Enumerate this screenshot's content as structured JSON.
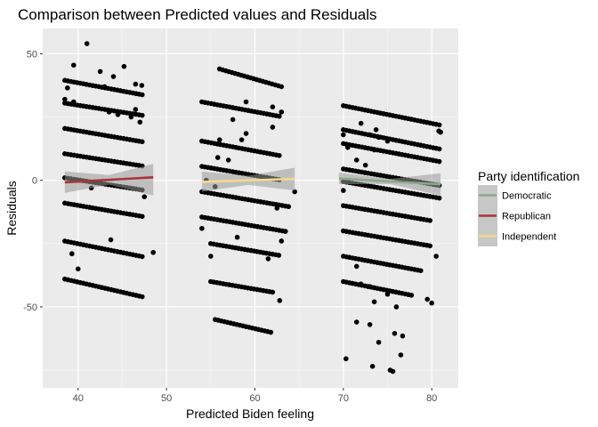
{
  "chart_data": {
    "type": "scatter",
    "title": "Comparison between Predicted values and Residuals",
    "xlabel": "Predicted Biden feeling",
    "ylabel": "Residuals",
    "xlim": [
      36,
      83
    ],
    "ylim": [
      -82,
      60
    ],
    "x_ticks": [
      40,
      50,
      60,
      70,
      80
    ],
    "y_ticks": [
      -50,
      0,
      50
    ],
    "grid": true,
    "legend": {
      "title": "Party identification",
      "position": "right",
      "entries": [
        {
          "name": "Democratic",
          "color": "#8aa88a"
        },
        {
          "name": "Republican",
          "color": "#a8323a"
        },
        {
          "name": "Independent",
          "color": "#f5d88a"
        }
      ]
    },
    "point_color": "#000000",
    "band_color": "#999999",
    "bands": [
      {
        "x0": 38.5,
        "x1": 47.5,
        "y0": 39.5,
        "slope": -0.65
      },
      {
        "x0": 38.5,
        "x1": 47.5,
        "y0": 30.5,
        "slope": -0.55
      },
      {
        "x0": 38.5,
        "x1": 47.5,
        "y0": 20.5,
        "slope": -0.6
      },
      {
        "x0": 38.5,
        "x1": 47.5,
        "y0": 10.5,
        "slope": -0.55
      },
      {
        "x0": 38.5,
        "x1": 47.5,
        "y0": 1,
        "slope": -0.55
      },
      {
        "x0": 38.5,
        "x1": 47.5,
        "y0": -9,
        "slope": -0.6
      },
      {
        "x0": 38.5,
        "x1": 47.5,
        "y0": -24,
        "slope": -0.7
      },
      {
        "x0": 38.5,
        "x1": 47.5,
        "y0": -39,
        "slope": -0.8
      },
      {
        "x0": 54,
        "x1": 63,
        "y0": 31,
        "slope": -0.65
      },
      {
        "x0": 54,
        "x1": 63,
        "y0": 15.5,
        "slope": -0.65
      },
      {
        "x0": 54,
        "x1": 63,
        "y0": 5.5,
        "slope": -0.6
      },
      {
        "x0": 54,
        "x1": 64,
        "y0": -4.5,
        "slope": -0.6
      },
      {
        "x0": 54,
        "x1": 63.5,
        "y0": -14.5,
        "slope": -0.6
      },
      {
        "x0": 55,
        "x1": 63,
        "y0": -25,
        "slope": -0.6
      },
      {
        "x0": 55,
        "x1": 62,
        "y0": -40,
        "slope": -0.6
      },
      {
        "x0": 55.5,
        "x1": 62,
        "y0": -55,
        "slope": -0.8
      },
      {
        "x0": 56,
        "x1": 63,
        "y0": 44,
        "slope": -1.0
      },
      {
        "x0": 70,
        "x1": 81,
        "y0": 29.5,
        "slope": -0.7
      },
      {
        "x0": 70,
        "x1": 81,
        "y0": 20,
        "slope": -0.7
      },
      {
        "x0": 70,
        "x1": 81,
        "y0": 14.5,
        "slope": -0.65
      },
      {
        "x0": 70,
        "x1": 81,
        "y0": 4.5,
        "slope": -0.6
      },
      {
        "x0": 70,
        "x1": 81,
        "y0": -0.5,
        "slope": -0.6
      },
      {
        "x0": 70,
        "x1": 80,
        "y0": -10,
        "slope": -0.6
      },
      {
        "x0": 70,
        "x1": 80,
        "y0": -20,
        "slope": -0.6
      },
      {
        "x0": 70,
        "x1": 79,
        "y0": -30,
        "slope": -0.65
      },
      {
        "x0": 70,
        "x1": 78,
        "y0": -40,
        "slope": -0.7
      }
    ],
    "extra_points": [
      {
        "x": 41,
        "y": 54
      },
      {
        "x": 39.5,
        "y": 45.5
      },
      {
        "x": 38.8,
        "y": 36.5
      },
      {
        "x": 38.5,
        "y": 32
      },
      {
        "x": 42.5,
        "y": 43
      },
      {
        "x": 44,
        "y": 41
      },
      {
        "x": 45.2,
        "y": 45
      },
      {
        "x": 43,
        "y": 37
      },
      {
        "x": 46.5,
        "y": 38
      },
      {
        "x": 47.2,
        "y": 37.5
      },
      {
        "x": 43.5,
        "y": 27
      },
      {
        "x": 44.5,
        "y": 26
      },
      {
        "x": 46.5,
        "y": 28
      },
      {
        "x": 47,
        "y": 23
      },
      {
        "x": 46,
        "y": 25
      },
      {
        "x": 39.5,
        "y": 31
      },
      {
        "x": 39.3,
        "y": -29
      },
      {
        "x": 40,
        "y": -35
      },
      {
        "x": 43.7,
        "y": -23.5
      },
      {
        "x": 48.5,
        "y": -28.5
      },
      {
        "x": 47.5,
        "y": -6.5
      },
      {
        "x": 41.5,
        "y": -3
      },
      {
        "x": 62,
        "y": 29
      },
      {
        "x": 59,
        "y": 31
      },
      {
        "x": 57.5,
        "y": 24
      },
      {
        "x": 59,
        "y": 18.5
      },
      {
        "x": 58.5,
        "y": 16
      },
      {
        "x": 62,
        "y": 21
      },
      {
        "x": 63,
        "y": 27
      },
      {
        "x": 56,
        "y": 16
      },
      {
        "x": 55.8,
        "y": 9
      },
      {
        "x": 57,
        "y": 8
      },
      {
        "x": 54.5,
        "y": 0
      },
      {
        "x": 55.5,
        "y": -2.5
      },
      {
        "x": 64.5,
        "y": -4.5
      },
      {
        "x": 62.5,
        "y": -11
      },
      {
        "x": 63,
        "y": -24
      },
      {
        "x": 55,
        "y": -30
      },
      {
        "x": 58,
        "y": -22.5
      },
      {
        "x": 54,
        "y": -19
      },
      {
        "x": 61.5,
        "y": -31
      },
      {
        "x": 62.8,
        "y": -47.5
      },
      {
        "x": 70,
        "y": 18
      },
      {
        "x": 72,
        "y": 22.5
      },
      {
        "x": 73,
        "y": 18
      },
      {
        "x": 74,
        "y": 17
      },
      {
        "x": 75,
        "y": 15.5
      },
      {
        "x": 81,
        "y": 19
      },
      {
        "x": 80.8,
        "y": 19.5
      },
      {
        "x": 71.5,
        "y": 8
      },
      {
        "x": 72.5,
        "y": 6
      },
      {
        "x": 73.5,
        "y": 12
      },
      {
        "x": 70.5,
        "y": 13
      },
      {
        "x": 70,
        "y": -4
      },
      {
        "x": 71.5,
        "y": -34
      },
      {
        "x": 72,
        "y": -41
      },
      {
        "x": 73,
        "y": -42
      },
      {
        "x": 73.5,
        "y": -48
      },
      {
        "x": 75,
        "y": -45
      },
      {
        "x": 76,
        "y": -50
      },
      {
        "x": 80.5,
        "y": -30
      },
      {
        "x": 79.5,
        "y": -47
      },
      {
        "x": 80,
        "y": -48.5
      },
      {
        "x": 71.5,
        "y": -56
      },
      {
        "x": 73,
        "y": -57
      },
      {
        "x": 70.3,
        "y": -70.5
      },
      {
        "x": 73.3,
        "y": -73.5
      },
      {
        "x": 75.3,
        "y": -75
      },
      {
        "x": 75.6,
        "y": -75.5
      },
      {
        "x": 75.8,
        "y": -60.5
      },
      {
        "x": 76.7,
        "y": -61.5
      },
      {
        "x": 76.5,
        "y": -69
      },
      {
        "x": 74,
        "y": -64
      },
      {
        "x": 73.7,
        "y": 20
      }
    ],
    "series": [
      {
        "name": "Republican",
        "x": [
          38.5,
          48.5
        ],
        "y": [
          -0.8,
          1.2
        ],
        "ci_low": [
          -5,
          -6
        ],
        "ci_high": [
          3.5,
          6.5
        ]
      },
      {
        "name": "Independent",
        "x": [
          54,
          64.5
        ],
        "y": [
          -0.6,
          0.6
        ],
        "ci_low": [
          -4.5,
          -4
        ],
        "ci_high": [
          3.5,
          5
        ]
      },
      {
        "name": "Democratic",
        "x": [
          69.5,
          81
        ],
        "y": [
          0.7,
          -1.6
        ],
        "ci_low": [
          -1.5,
          -6
        ],
        "ci_high": [
          3,
          2.8
        ]
      }
    ]
  }
}
